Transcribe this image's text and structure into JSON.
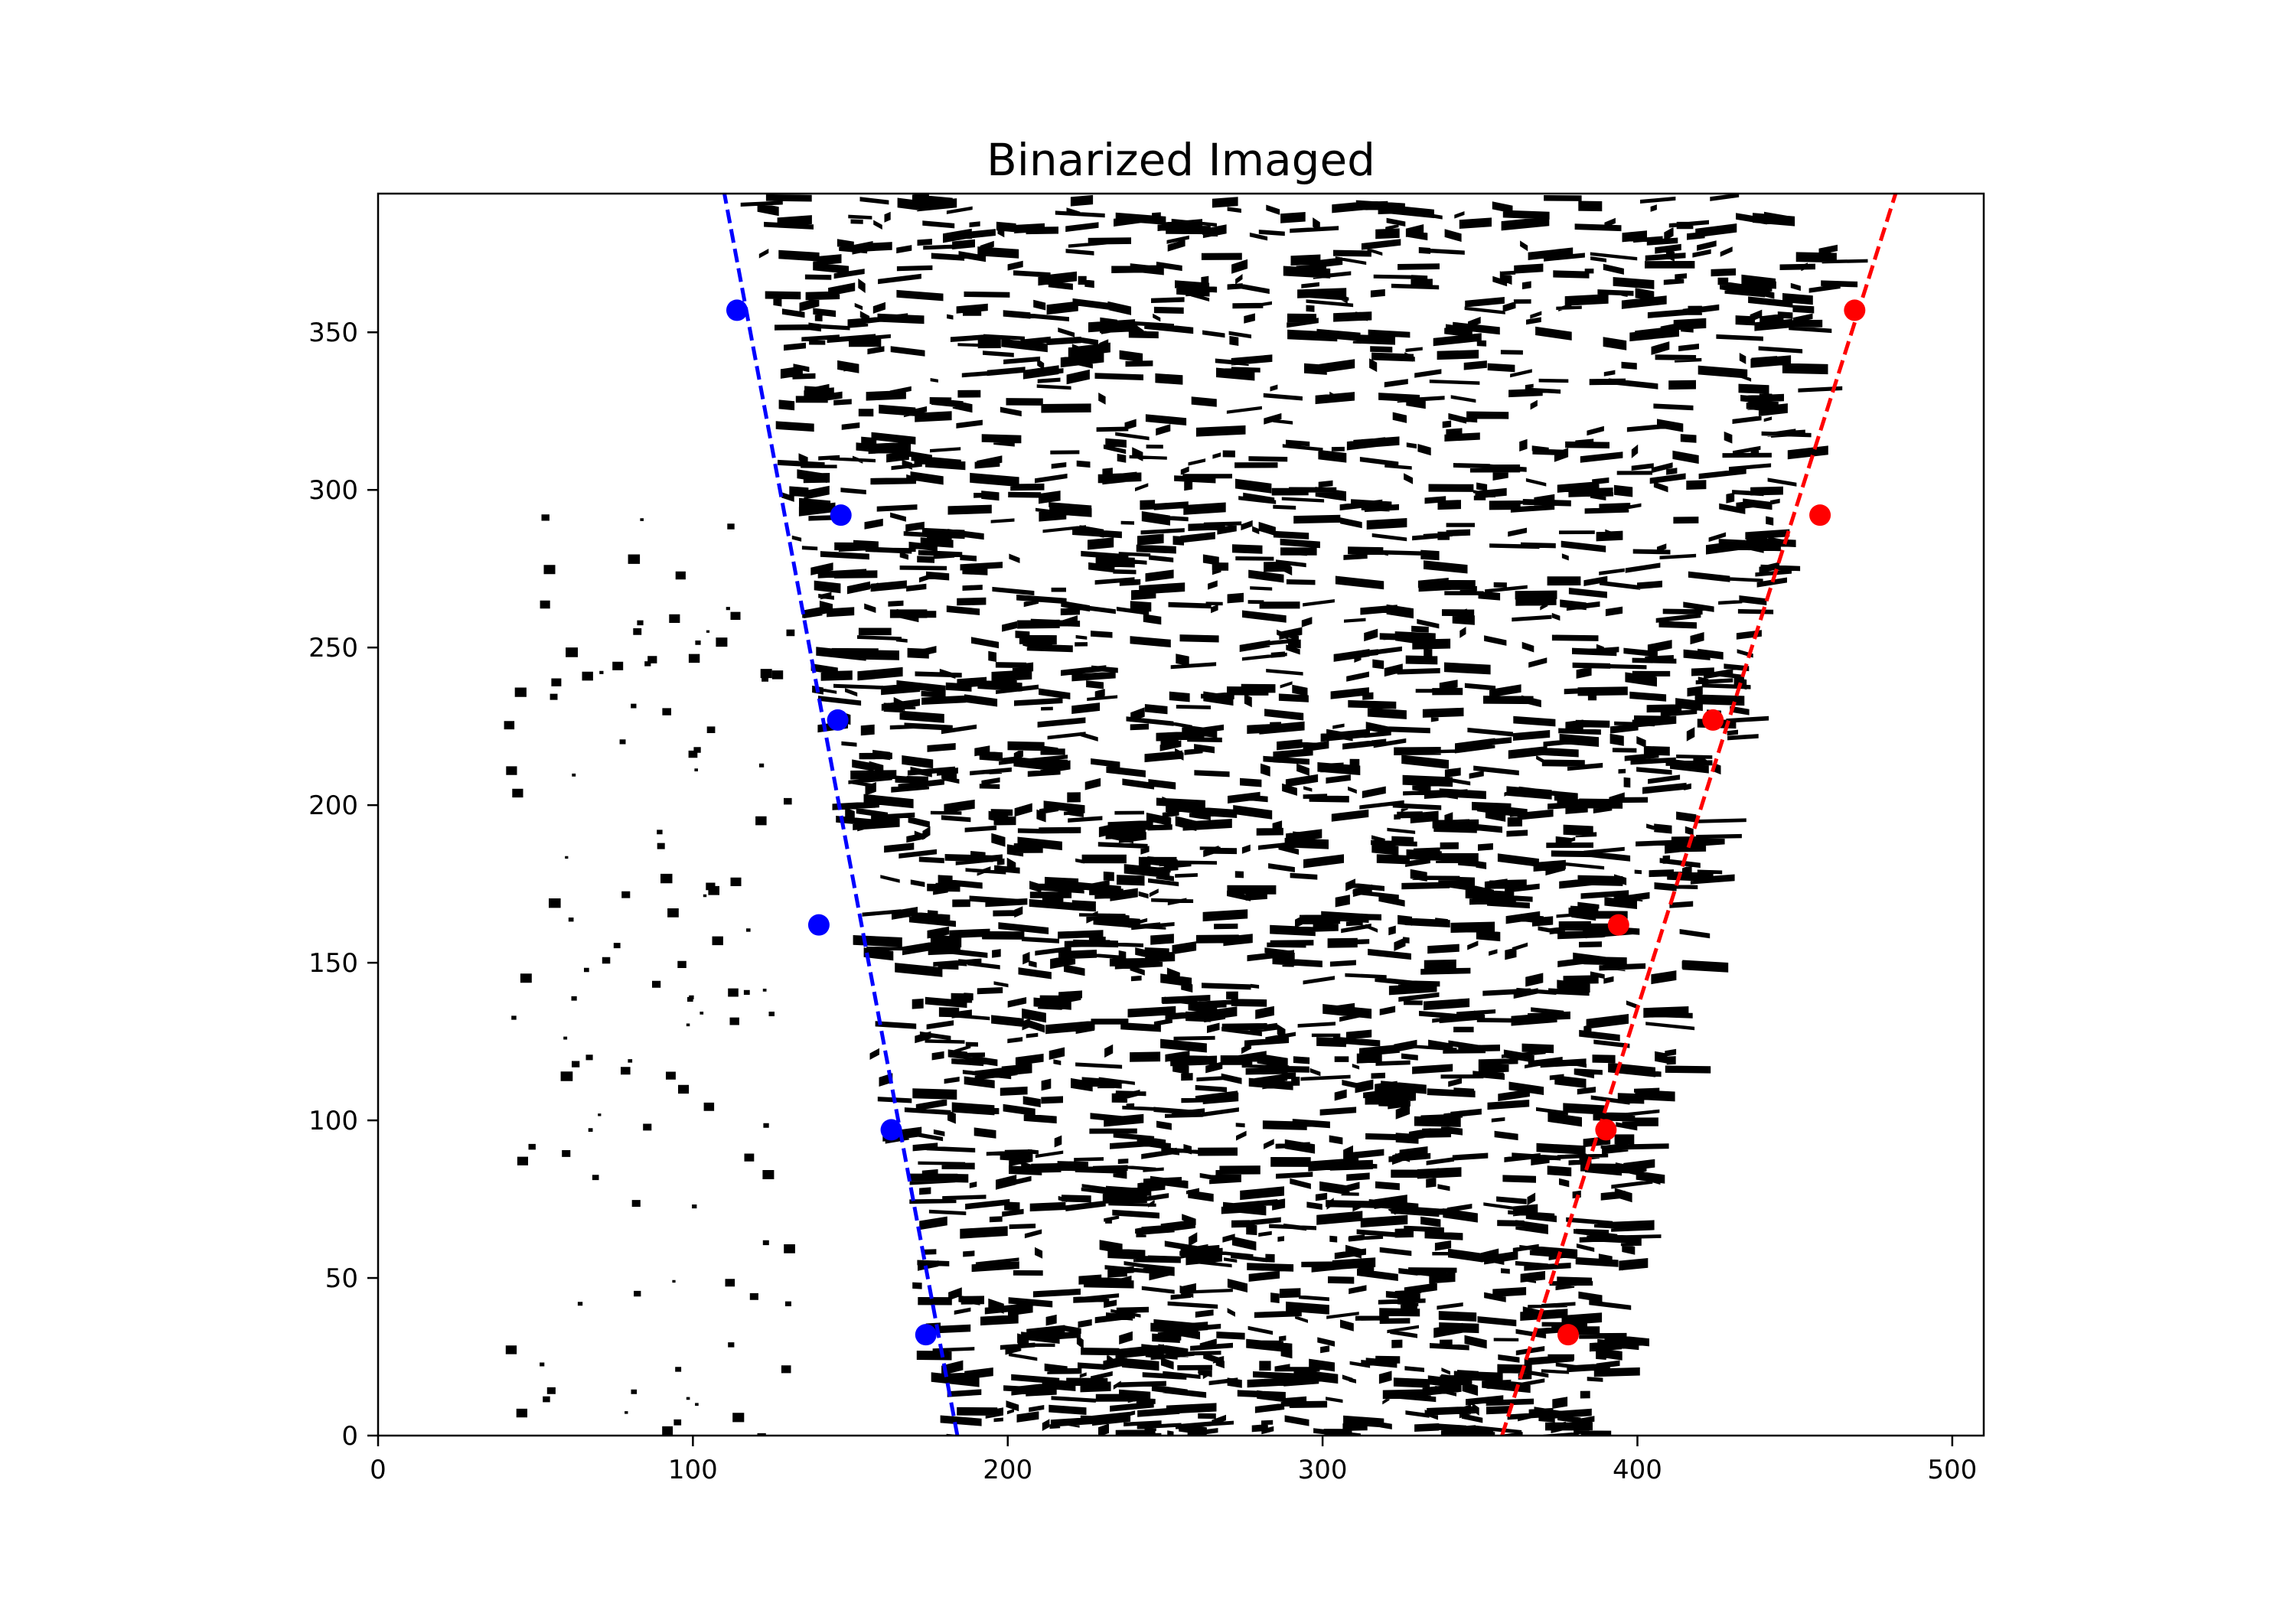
{
  "chart_data": {
    "type": "scatter",
    "title": "Binarized Imaged",
    "xlabel": "",
    "ylabel": "",
    "xlim": [
      0,
      510
    ],
    "ylim": [
      0,
      394
    ],
    "x_ticks": [
      0,
      100,
      200,
      300,
      400,
      500
    ],
    "y_ticks": [
      0,
      50,
      100,
      150,
      200,
      250,
      300,
      350
    ],
    "grid": false,
    "legend": null,
    "background_image": "binarized-noise-texture",
    "series": [
      {
        "color": "#0000ff",
        "marker": "circle",
        "points": [
          {
            "x": 114,
            "y": 357
          },
          {
            "x": 147,
            "y": 292
          },
          {
            "x": 146,
            "y": 227
          },
          {
            "x": 140,
            "y": 162
          },
          {
            "x": 163,
            "y": 97
          },
          {
            "x": 174,
            "y": 32
          }
        ],
        "fit_line": {
          "style": "dashed",
          "from": {
            "x": 184,
            "y": 0
          },
          "to": {
            "x": 110,
            "y": 394
          }
        }
      },
      {
        "color": "#ff0000",
        "marker": "circle",
        "points": [
          {
            "x": 469,
            "y": 357
          },
          {
            "x": 458,
            "y": 292
          },
          {
            "x": 424,
            "y": 227
          },
          {
            "x": 394,
            "y": 162
          },
          {
            "x": 390,
            "y": 97
          },
          {
            "x": 378,
            "y": 32
          }
        ],
        "fit_line": {
          "style": "dashed",
          "from": {
            "x": 357,
            "y": 0
          },
          "to": {
            "x": 482,
            "y": 394
          }
        }
      }
    ]
  }
}
